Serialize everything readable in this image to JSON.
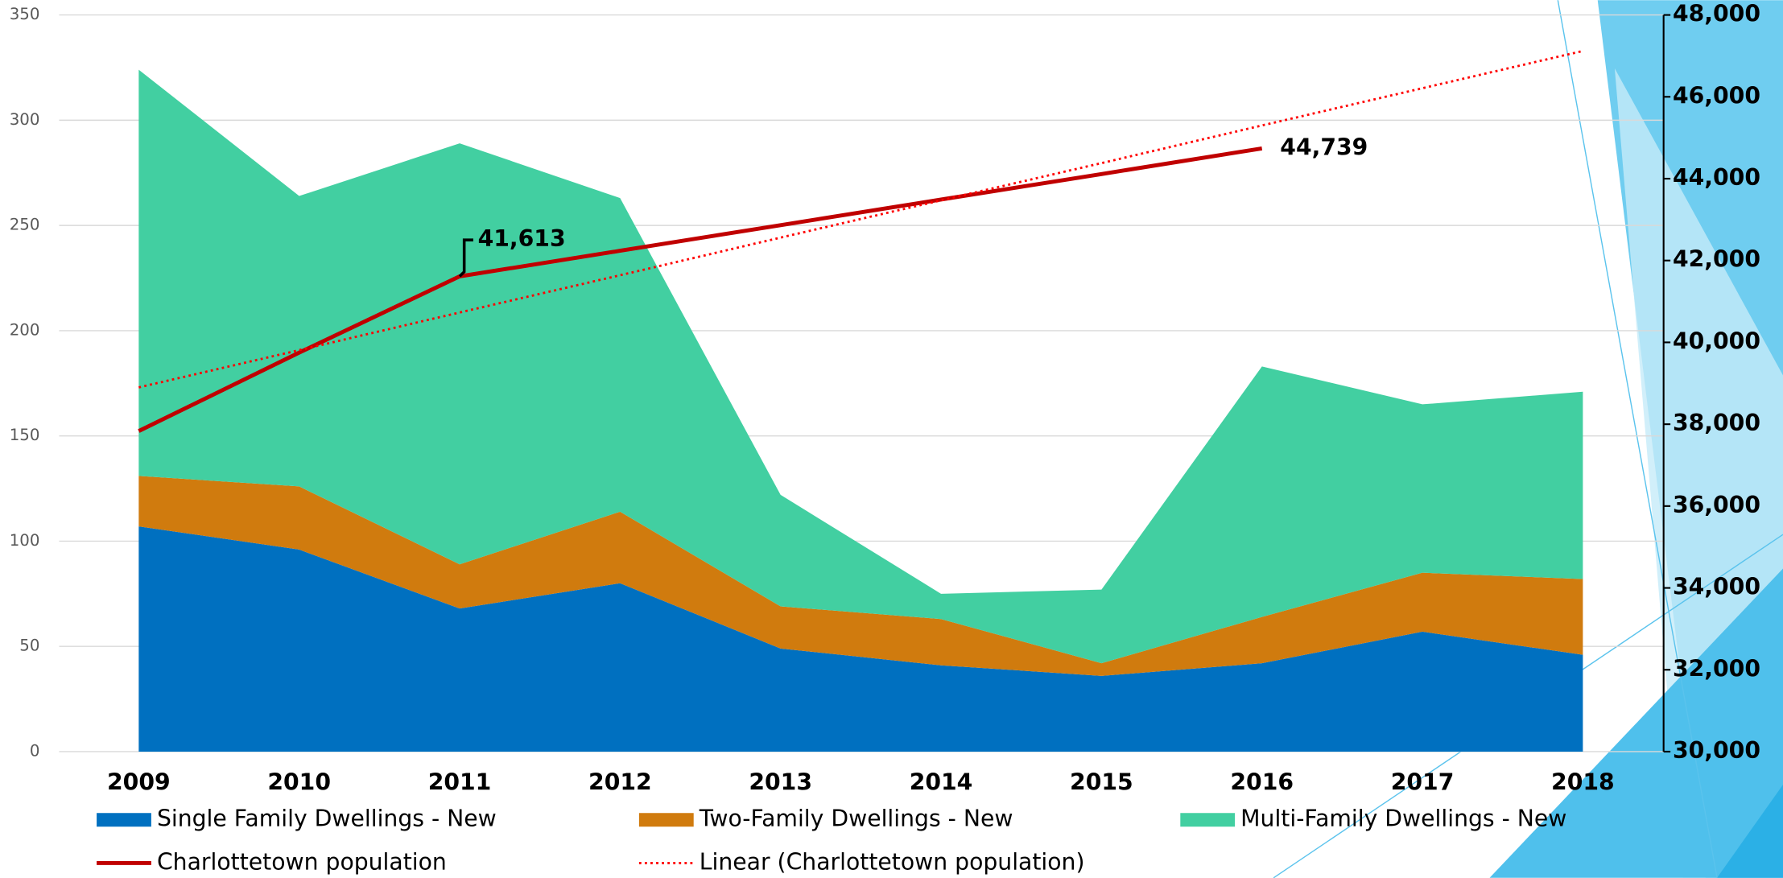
{
  "chart_data": {
    "type": "area",
    "categories": [
      "2009",
      "2010",
      "2011",
      "2012",
      "2013",
      "2014",
      "2015",
      "2016",
      "2017",
      "2018"
    ],
    "series": [
      {
        "name": "Single Family Dwellings - New",
        "color": "#0070c0",
        "values": [
          107,
          96,
          68,
          80,
          49,
          41,
          36,
          42,
          57,
          46
        ]
      },
      {
        "name": "Two-Family Dwellings - New",
        "color": "#d07b0e",
        "values": [
          24,
          30,
          21,
          34,
          20,
          22,
          6,
          22,
          28,
          36
        ]
      },
      {
        "name": "Multi-Family Dwellings - New",
        "color": "#42cfa1",
        "values": [
          193,
          138,
          200,
          149,
          53,
          12,
          35,
          119,
          80,
          89
        ]
      },
      {
        "name": "Charlottetown population",
        "type": "line",
        "axis": "y2",
        "color": "#c00000",
        "values": [
          37833,
          39750,
          41613,
          42238,
          42864,
          43490,
          44113,
          44739,
          null,
          null
        ],
        "value_labels": [
          null,
          null,
          "41,613",
          null,
          null,
          null,
          null,
          "44,739",
          null,
          null
        ]
      },
      {
        "name": "Linear (Charlottetown population)",
        "type": "line",
        "axis": "y2",
        "color": "#ff0000",
        "style": "dotted",
        "values": [
          38900,
          39810,
          40730,
          41640,
          42560,
          43470,
          44380,
          45300,
          46210,
          47120
        ]
      }
    ],
    "ylim": [
      0,
      350
    ],
    "yticks": [
      0,
      50,
      100,
      150,
      200,
      250,
      300,
      350
    ],
    "y2lim": [
      30000,
      48000
    ],
    "y2ticks": [
      {
        "value": 30000,
        "label": "30,000"
      },
      {
        "value": 32000,
        "label": "32,000"
      },
      {
        "value": 34000,
        "label": "34,000"
      },
      {
        "value": 36000,
        "label": "36,000"
      },
      {
        "value": 38000,
        "label": "38,000"
      },
      {
        "value": 40000,
        "label": "40,000"
      },
      {
        "value": 42000,
        "label": "42,000"
      },
      {
        "value": 44000,
        "label": "44,000"
      },
      {
        "value": 46000,
        "label": "46,000"
      },
      {
        "value": 48000,
        "label": "48,000"
      }
    ],
    "grid": true,
    "legend": "bottom"
  }
}
